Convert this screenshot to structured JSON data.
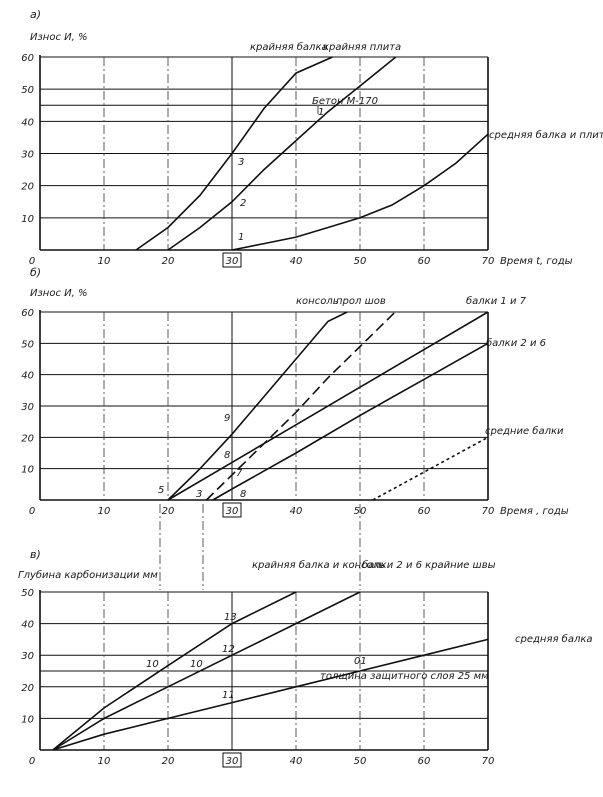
{
  "chart_data": [
    {
      "panel": "а)",
      "type": "line",
      "ylabel": "Износ И, %",
      "xlabel": "Время t, годы",
      "xlim": [
        0,
        70
      ],
      "ylim": [
        0,
        60
      ],
      "xticks": [
        0,
        10,
        20,
        30,
        40,
        50,
        60,
        70
      ],
      "yticks": [
        10,
        20,
        30,
        40,
        50,
        60
      ],
      "highlight_x": "30",
      "hlines": [
        {
          "y": 45,
          "label": "Бетон М-170"
        }
      ],
      "series": [
        {
          "name": "крайняя балка",
          "x": [
            15,
            20,
            25,
            30,
            35,
            40,
            45.7
          ],
          "y": [
            0,
            7,
            17,
            30,
            44,
            55,
            60
          ]
        },
        {
          "name": "крайняя плита",
          "x": [
            20,
            25,
            30,
            35,
            40,
            45,
            50,
            55.6
          ],
          "y": [
            0,
            7,
            15,
            25,
            34,
            43,
            51,
            60
          ]
        },
        {
          "name": "средняя балка и плита",
          "x": [
            30,
            35,
            40,
            45,
            50,
            55,
            60,
            65,
            70
          ],
          "y": [
            0,
            2,
            4,
            7,
            10,
            14,
            20,
            27,
            36
          ]
        }
      ],
      "curve_labels": [
        "3",
        "2",
        "1",
        "1"
      ]
    },
    {
      "panel": "б)",
      "type": "line",
      "ylabel": "Износ И, %",
      "xlabel": "Время , годы",
      "xlim": [
        0,
        70
      ],
      "ylim": [
        0,
        60
      ],
      "xticks": [
        0,
        10,
        20,
        30,
        40,
        50,
        60,
        70
      ],
      "yticks": [
        10,
        20,
        30,
        40,
        50,
        60
      ],
      "highlight_x": "30",
      "series": [
        {
          "name": "консоль",
          "style": "solid",
          "x": [
            20,
            25,
            30,
            35,
            40,
            45,
            48
          ],
          "y": [
            0,
            10,
            21,
            33,
            45,
            57,
            60
          ]
        },
        {
          "name": "прол шов",
          "style": "dashed",
          "x": [
            26,
            30,
            35,
            40,
            45,
            50,
            55.5
          ],
          "y": [
            0,
            8,
            18,
            28,
            39,
            49,
            60
          ]
        },
        {
          "name": "балки 1 и 7",
          "style": "solid",
          "x": [
            20,
            30,
            40,
            50,
            60,
            70
          ],
          "y": [
            0,
            12,
            24,
            36,
            48,
            60
          ]
        },
        {
          "name": "балки 2 и 6",
          "style": "solid",
          "x": [
            27,
            30,
            40,
            50,
            60,
            70
          ],
          "y": [
            0,
            3.5,
            15,
            27,
            38.5,
            50
          ]
        },
        {
          "name": "средние балки",
          "style": "dotted",
          "x": [
            52,
            70
          ],
          "y": [
            0,
            20
          ]
        }
      ],
      "curve_labels": [
        "9",
        "8",
        "7",
        "5",
        "3",
        "8"
      ]
    },
    {
      "panel": "в)",
      "type": "line",
      "ylabel": "Глубина карбонизации мм",
      "xlabel": "",
      "xlim": [
        0,
        70
      ],
      "ylim": [
        0,
        50
      ],
      "xticks": [
        0,
        10,
        20,
        30,
        40,
        50,
        60,
        70
      ],
      "yticks": [
        10,
        20,
        30,
        40,
        50
      ],
      "highlight_x": "30",
      "hlines": [
        {
          "y": 25,
          "label": "толщина защитного слоя 25 мм"
        }
      ],
      "series": [
        {
          "name": "крайняя балка и консоль",
          "x": [
            2,
            10,
            20,
            30,
            40
          ],
          "y": [
            0,
            13.3,
            26.7,
            40,
            50
          ]
        },
        {
          "name": "балки 2 и 6 крайние швы",
          "x": [
            2,
            10,
            20,
            30,
            40,
            50
          ],
          "y": [
            0,
            10,
            20,
            30,
            40,
            50
          ]
        },
        {
          "name": "средняя балка",
          "x": [
            2,
            10,
            20,
            30,
            40,
            50,
            60,
            70
          ],
          "y": [
            0,
            5,
            10,
            15,
            20,
            25,
            30,
            35
          ]
        }
      ],
      "curve_labels": [
        "13",
        "12",
        "11",
        "10",
        "10",
        "01"
      ]
    }
  ]
}
